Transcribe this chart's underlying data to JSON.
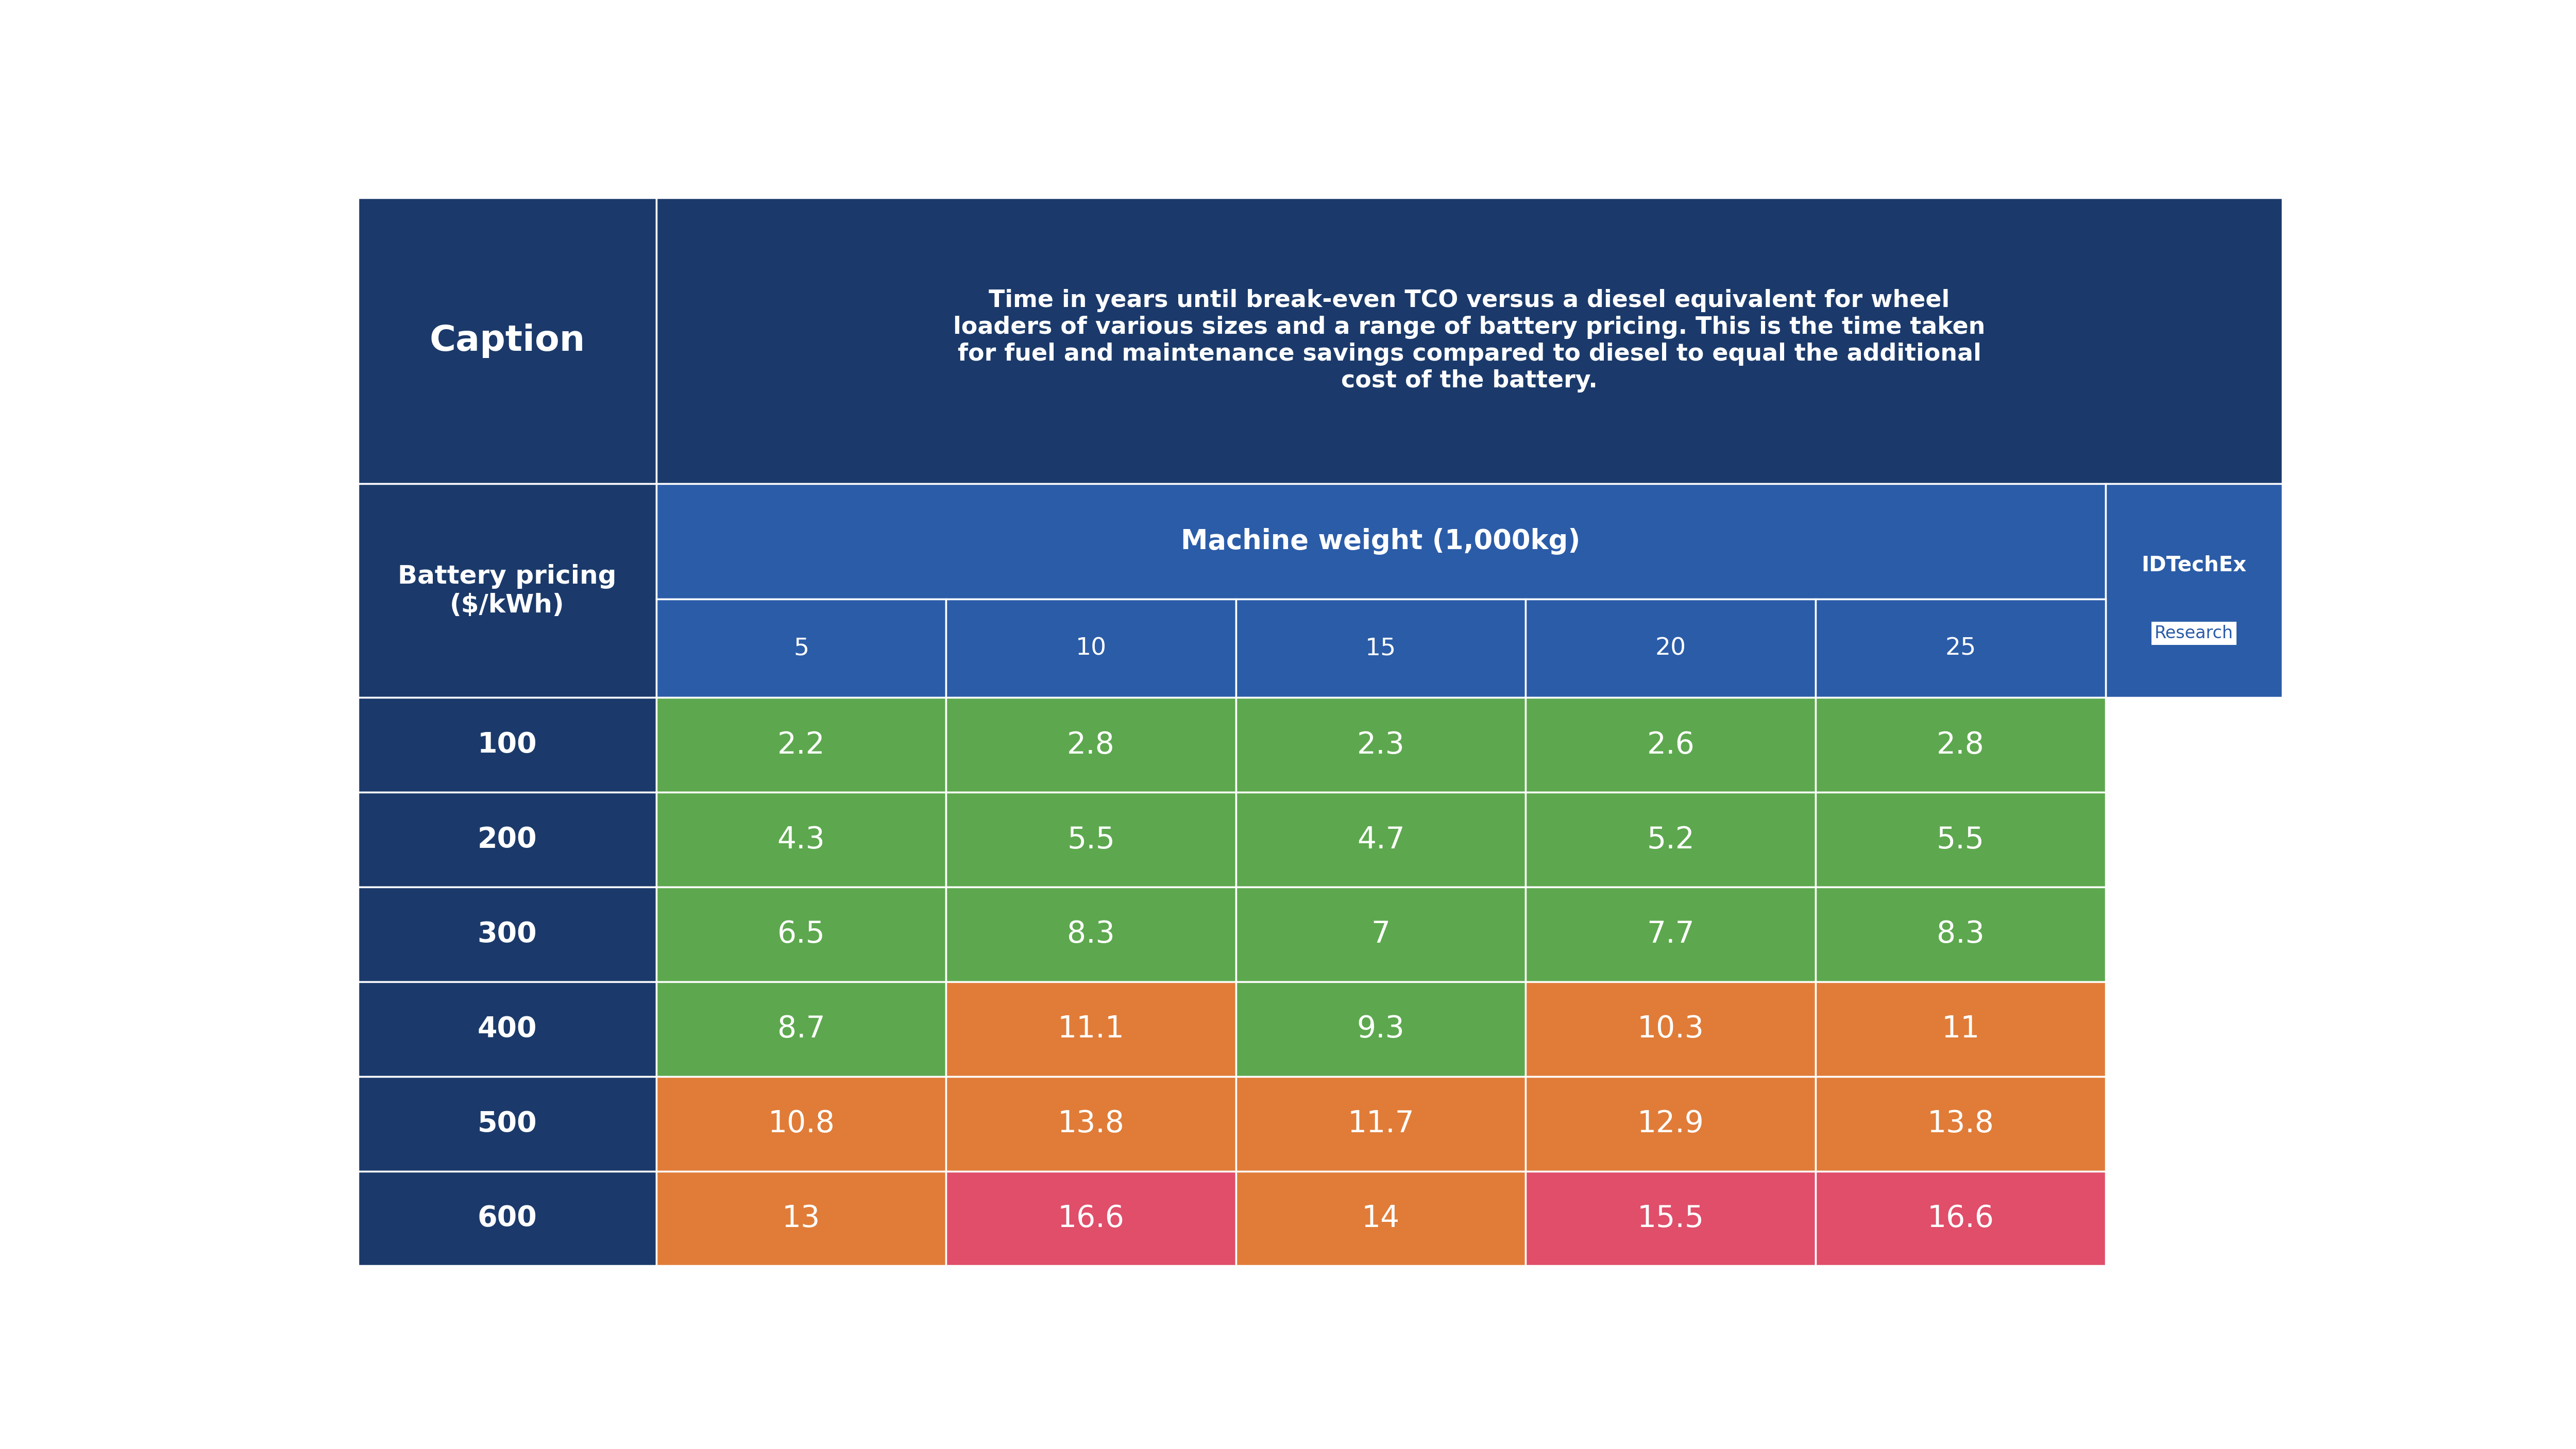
{
  "title": "Time in years until break-even TCO versus a diesel equivalent for wheel\nloaders of various sizes and a range of battery pricing. This is the time taken\nfor fuel and maintenance savings compared to diesel to equal the additional\ncost of the battery.",
  "caption_label": "Caption",
  "col_header_label": "Machine weight (1,000kg)",
  "row_header_label": "Battery pricing\n($/kWh)",
  "machine_weights": [
    "5",
    "10",
    "15",
    "20",
    "25"
  ],
  "battery_prices": [
    "100",
    "200",
    "300",
    "400",
    "500",
    "600"
  ],
  "values": [
    [
      2.2,
      2.8,
      2.3,
      2.6,
      2.8
    ],
    [
      4.3,
      5.5,
      4.7,
      5.2,
      5.5
    ],
    [
      6.5,
      8.3,
      7.0,
      7.7,
      8.3
    ],
    [
      8.7,
      11.1,
      9.3,
      10.3,
      11.0
    ],
    [
      10.8,
      13.8,
      11.7,
      12.9,
      13.8
    ],
    [
      13.0,
      16.6,
      14.0,
      15.5,
      16.6
    ]
  ],
  "cell_colors": [
    [
      "#5da84e",
      "#5da84e",
      "#5da84e",
      "#5da84e",
      "#5da84e"
    ],
    [
      "#5da84e",
      "#5da84e",
      "#5da84e",
      "#5da84e",
      "#5da84e"
    ],
    [
      "#5da84e",
      "#5da84e",
      "#5da84e",
      "#5da84e",
      "#5da84e"
    ],
    [
      "#5da84e",
      "#e07c38",
      "#5da84e",
      "#e07c38",
      "#e07c38"
    ],
    [
      "#e07c38",
      "#e07c38",
      "#e07c38",
      "#e07c38",
      "#e07c38"
    ],
    [
      "#e07c38",
      "#e04e6a",
      "#e07c38",
      "#e04e6a",
      "#e04e6a"
    ]
  ],
  "header_bg": "#1b3a6b",
  "subheader_bg": "#2b5ca8",
  "row_header_bg": "#1b3a6b",
  "bg_color": "#ffffff",
  "logo_text_idtech": "IDTechEx",
  "logo_text_research": "Research"
}
